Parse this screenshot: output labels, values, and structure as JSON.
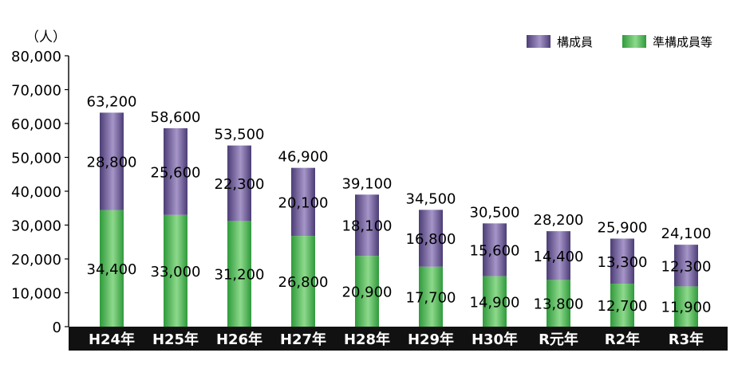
{
  "chart_data": {
    "type": "bar",
    "stacked": true,
    "unit_label": "（人）",
    "categories": [
      "H24年",
      "H25年",
      "H26年",
      "H27年",
      "H28年",
      "H29年",
      "H30年",
      "R元年",
      "R2年",
      "R3年"
    ],
    "series": [
      {
        "name": "準構成員等",
        "values": [
          34400,
          33000,
          31200,
          26800,
          20900,
          17700,
          14900,
          13800,
          12700,
          11900
        ]
      },
      {
        "name": "構成員",
        "values": [
          28800,
          25600,
          22300,
          20100,
          18100,
          16800,
          15600,
          14400,
          13300,
          12300
        ]
      }
    ],
    "totals": [
      63200,
      58600,
      53500,
      46900,
      39100,
      34500,
      30500,
      28200,
      25900,
      24100
    ],
    "value_labels": {
      "bottom": [
        "34,400",
        "33,000",
        "31,200",
        "26,800",
        "20,900",
        "17,700",
        "14,900",
        "13,800",
        "12,700",
        "11,900"
      ],
      "top": [
        "28,800",
        "25,600",
        "22,300",
        "20,100",
        "18,100",
        "16,800",
        "15,600",
        "14,400",
        "13,300",
        "12,300"
      ],
      "totals": [
        "63,200",
        "58,600",
        "53,500",
        "46,900",
        "39,100",
        "34,500",
        "30,500",
        "28,200",
        "25,900",
        "24,100"
      ]
    },
    "y_ticks": [
      0,
      10000,
      20000,
      30000,
      40000,
      50000,
      60000,
      70000,
      80000
    ],
    "y_tick_labels": [
      "0",
      "10,000",
      "20,000",
      "30,000",
      "40,000",
      "50,000",
      "60,000",
      "70,000",
      "80,000"
    ],
    "ylim": [
      0,
      80000
    ],
    "grid": false,
    "legend": {
      "placement": "top-right",
      "items": [
        {
          "label": "構成員",
          "series": 1
        },
        {
          "label": "準構成員等",
          "series": 0
        }
      ]
    },
    "colors": {
      "series0_dark": "#2f9a3b",
      "series0_light": "#8ed98c",
      "series1_dark": "#4c3d76",
      "series1_light": "#a595c8",
      "category_band": "#111111",
      "category_text": "#ffffff",
      "axis": "#000000"
    }
  }
}
